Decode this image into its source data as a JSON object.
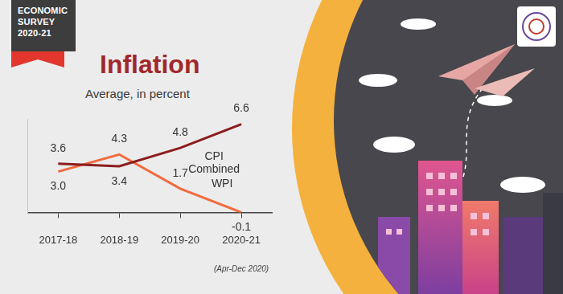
{
  "chart_data": {
    "type": "line",
    "badge": "ECONOMIC SURVEY 2020-21",
    "title": "Inflation",
    "subtitle": "Average, in percent",
    "categories": [
      "2017-18",
      "2018-19",
      "2019-20",
      "2020-21"
    ],
    "annotations": [
      {
        "text": "(Apr-Dec 2020)",
        "category": "2020-21"
      }
    ],
    "series": [
      {
        "name": "CPI Combined",
        "color": "#8c1d1d",
        "values": [
          3.6,
          3.4,
          4.8,
          6.6
        ]
      },
      {
        "name": "WPI",
        "color": "#f26a3d",
        "values": [
          3.0,
          4.3,
          1.7,
          -0.1
        ],
        "value_labels": [
          "3.0",
          "4.3",
          "1.7",
          "-0.1"
        ]
      }
    ],
    "ylim": [
      -0.1,
      7
    ],
    "data_labels": true,
    "tick_labels": "x",
    "grid": false
  }
}
